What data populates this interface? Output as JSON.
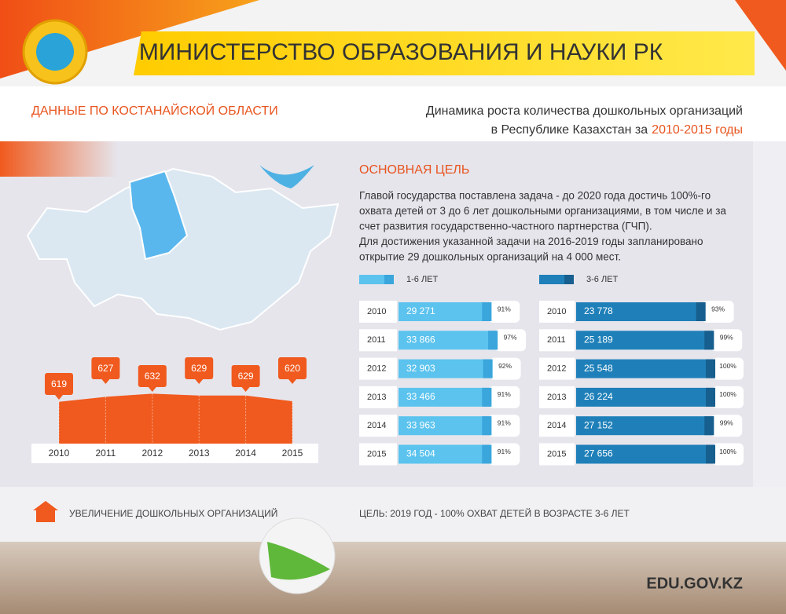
{
  "header": {
    "title": "МИНИСТЕРСТВО ОБРАЗОВАНИЯ И НАУКИ РК",
    "region": "ДАННЫЕ ПО КОСТАНАЙСКОЙ ОБЛАСТИ",
    "subtitle_line1": "Динамика роста количества дошкольных организаций",
    "subtitle_line2": "в Республике Казахстан за",
    "subtitle_years": "2010-2015 годы"
  },
  "goal": {
    "title": "ОСНОВНАЯ ЦЕЛЬ",
    "lines": [
      "Главой государства поставлена задача - до 2020 года достичь 100%-го",
      "охвата детей от 3 до 6 лет дошкольными организациями, в том числе и за",
      "счет развития государственно-частного партнерства (ГЧП).",
      "Для достижения указанной задачи на 2016-2019 годы запланировано",
      "открытие 29 дошкольных организаций на 4 000 мест."
    ]
  },
  "chart_data": [
    {
      "type": "area",
      "caption": "УВЕЛИЧЕНИЕ ДОШКОЛЬНЫХ ОРГАНИЗАЦИЙ",
      "categories": [
        "2010",
        "2011",
        "2012",
        "2013",
        "2014",
        "2015"
      ],
      "values": [
        619,
        627,
        632,
        629,
        629,
        620
      ],
      "color": "#f05a1e",
      "ylim": [
        590,
        640
      ]
    },
    {
      "type": "hbar",
      "categories": [
        "2010",
        "2011",
        "2012",
        "2013",
        "2014",
        "2015"
      ],
      "xlim": [
        0,
        100
      ],
      "series": [
        {
          "name": "1-6 ЛЕТ",
          "color": "#5bc3ee",
          "values": [
            29271,
            33866,
            32903,
            33466,
            33963,
            34504
          ],
          "value_labels": [
            "29 271",
            "33 866",
            "32 903",
            "33 466",
            "33 963",
            "34 504"
          ]
        },
        {
          "color": "#3aa6dc",
          "values": [
            91,
            97,
            92,
            91,
            91,
            91
          ],
          "value_labels": [
            "91%",
            "97%",
            "92%",
            "91%",
            "91%",
            "91%"
          ]
        }
      ]
    },
    {
      "type": "hbar",
      "categories": [
        "2010",
        "2011",
        "2012",
        "2013",
        "2014",
        "2015"
      ],
      "xlim": [
        0,
        100
      ],
      "series": [
        {
          "name": "3-6 ЛЕТ",
          "color": "#1f80b9",
          "values": [
            23778,
            25189,
            25548,
            26224,
            27152,
            27656
          ],
          "value_labels": [
            "23 778",
            "25 189",
            "25 548",
            "26 224",
            "27 152",
            "27 656"
          ]
        },
        {
          "color": "#175f8e",
          "values": [
            93,
            99,
            100,
            100,
            99,
            100
          ],
          "value_labels": [
            "93%",
            "99%",
            "100%",
            "100%",
            "99%",
            "100%"
          ]
        }
      ]
    }
  ],
  "footer": {
    "goal": "ЦЕЛЬ: 2019 ГОД - 100% ОХВАТ ДЕТЕЙ В ВОЗРАСТЕ 3-6 ЛЕТ",
    "site": "EDU.GOV.KZ"
  }
}
